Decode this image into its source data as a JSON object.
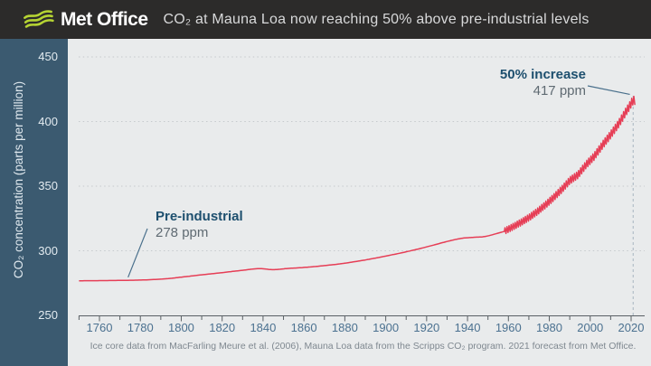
{
  "header": {
    "logo_text": "Met Office",
    "title": "CO₂ at Mauna Loa now reaching 50% above pre-industrial levels"
  },
  "footer": {
    "source": "Ice core data from MacFarling Meure et al. (2006), Mauna Loa data from the Scripps CO₂ program. 2021 forecast from Met Office."
  },
  "colors": {
    "header_bg": "#2c2b2a",
    "logo_green": "#b6d433",
    "sidebar_bg": "#3b5a70",
    "plot_bg": "#e9ebec",
    "line_red": "#e63e56",
    "annotation_blue": "#1d4f6e",
    "annotation_gray": "#5f6a72",
    "tick_label_blue": "#4b7190",
    "axis_gray": "#5a6065",
    "gridline_gray": "#c6cacd",
    "forecast_dash": "#a7b5c0",
    "leader_line": "#4a708c"
  },
  "chart_data": {
    "type": "line",
    "title": "CO₂ at Mauna Loa now reaching 50% above pre-industrial levels",
    "ylabel": "CO₂ concentration (parts per million)",
    "xlabel": "",
    "ylim": [
      250,
      460
    ],
    "xlim": [
      1750,
      2027
    ],
    "y_ticks": [
      250,
      300,
      350,
      400,
      450
    ],
    "x_ticks_labeled": [
      1760,
      1780,
      1800,
      1820,
      1840,
      1860,
      1880,
      1900,
      1920,
      1940,
      1960,
      1980,
      2000,
      2020
    ],
    "x_minor_tick_step": 10,
    "grid": "horizontal dotted",
    "forecast_marker_year": 2021,
    "series": [
      {
        "name": "Ice core data (MacFarling Meure et al. 2006)",
        "style": "smooth",
        "color": "#e63e56",
        "points": [
          [
            1750,
            276.8
          ],
          [
            1760,
            276.9
          ],
          [
            1772,
            277.1
          ],
          [
            1783,
            277.5
          ],
          [
            1793,
            278.4
          ],
          [
            1800,
            279.6
          ],
          [
            1810,
            281.4
          ],
          [
            1820,
            283.1
          ],
          [
            1830,
            284.9
          ],
          [
            1838,
            286.2
          ],
          [
            1845,
            285.4
          ],
          [
            1852,
            286.3
          ],
          [
            1860,
            287.1
          ],
          [
            1870,
            288.5
          ],
          [
            1880,
            290.4
          ],
          [
            1890,
            292.9
          ],
          [
            1900,
            295.9
          ],
          [
            1910,
            299.2
          ],
          [
            1920,
            303.0
          ],
          [
            1930,
            307.2
          ],
          [
            1937,
            309.6
          ],
          [
            1943,
            310.4
          ],
          [
            1949,
            311.2
          ],
          [
            1958,
            315.0
          ]
        ]
      },
      {
        "name": "Mauna Loa (Scripps CO₂ program), 2021 Met Office forecast",
        "style": "seasonal-zigzag",
        "color": "#e63e56",
        "seasonal_amplitude_ppm": {
          "start": 2.5,
          "end": 3.2
        },
        "annual_means": [
          [
            1958,
            315.2
          ],
          [
            1962,
            318.4
          ],
          [
            1966,
            321.9
          ],
          [
            1970,
            325.7
          ],
          [
            1974,
            330.2
          ],
          [
            1978,
            335.4
          ],
          [
            1982,
            341.1
          ],
          [
            1986,
            347.4
          ],
          [
            1990,
            354.4
          ],
          [
            1994,
            358.8
          ],
          [
            1998,
            366.7
          ],
          [
            2002,
            373.2
          ],
          [
            2006,
            381.9
          ],
          [
            2010,
            389.9
          ],
          [
            2014,
            398.6
          ],
          [
            2017,
            406.5
          ],
          [
            2019,
            411.4
          ],
          [
            2020,
            414.2
          ],
          [
            2021,
            416.5
          ]
        ]
      }
    ],
    "annotations": [
      {
        "id": "pre-industrial",
        "label": "Pre-industrial",
        "value": "278 ppm",
        "target_year": 1774,
        "target_ppm": 279.5
      },
      {
        "id": "fifty-percent-increase",
        "label": "50% increase",
        "value": "417 ppm",
        "target_year": 2020.7,
        "target_ppm": 421
      }
    ]
  }
}
